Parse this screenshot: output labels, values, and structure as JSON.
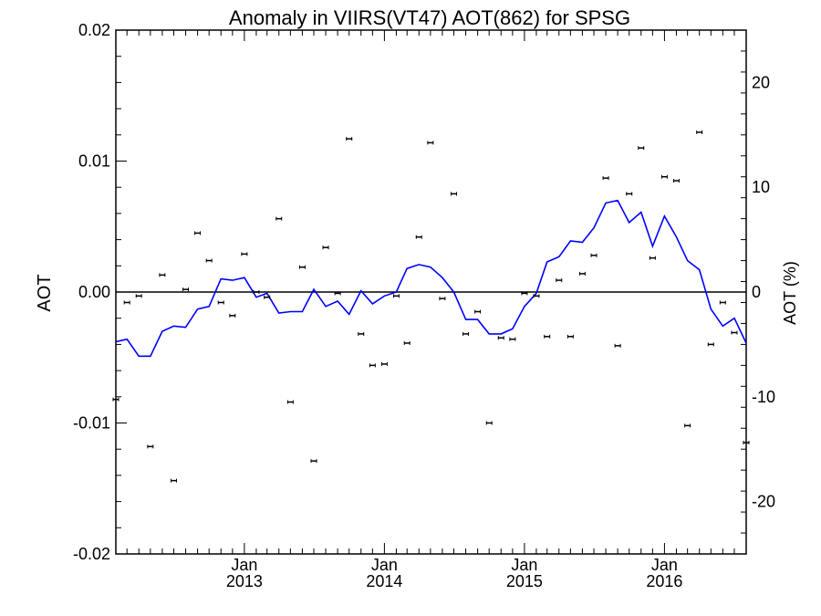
{
  "chart_data": {
    "type": "scatter",
    "title": "Anomaly in VIIRS(VT47) AOT(862) for SPSG",
    "ylabel_left": "AOT",
    "ylabel_right": "AOT (%)",
    "xlabel": "",
    "xlim": [
      "2012-02-01",
      "2016-08-01"
    ],
    "ylim_left": [
      -0.02,
      0.02
    ],
    "ylim_right": [
      -25,
      25
    ],
    "grid": false,
    "x_ticks": [
      {
        "date": "2013-01-01",
        "month": "Jan",
        "year": "2013"
      },
      {
        "date": "2014-01-01",
        "month": "Jan",
        "year": "2014"
      },
      {
        "date": "2015-01-01",
        "month": "Jan",
        "year": "2015"
      },
      {
        "date": "2016-01-01",
        "month": "Jan",
        "year": "2016"
      }
    ],
    "y_ticks_left": [
      "0.02",
      "0.01",
      "0.00",
      "-0.01",
      "-0.02"
    ],
    "y_ticks_left_values": [
      0.02,
      0.01,
      0.0,
      -0.01,
      -0.02
    ],
    "y_ticks_right": [
      "20",
      "10",
      "0",
      "-10",
      "-20"
    ],
    "y_ticks_right_values": [
      20,
      10,
      0,
      -10,
      -20
    ],
    "reference_line_y": 0,
    "colors": {
      "points": "#000000",
      "running_mean": "#0000ff",
      "axis": "#000000"
    },
    "series": [
      {
        "kind": "points_with_errorbars",
        "x": [
          "2012-02-01",
          "2012-03-01",
          "2012-04-01",
          "2012-05-01",
          "2012-06-01",
          "2012-07-01",
          "2012-08-01",
          "2012-09-01",
          "2012-10-01",
          "2012-11-01",
          "2012-12-01",
          "2013-01-01",
          "2013-02-01",
          "2013-03-01",
          "2013-04-01",
          "2013-05-01",
          "2013-06-01",
          "2013-07-01",
          "2013-08-01",
          "2013-09-01",
          "2013-10-01",
          "2013-11-01",
          "2013-12-01",
          "2014-01-01",
          "2014-02-01",
          "2014-03-01",
          "2014-04-01",
          "2014-05-01",
          "2014-06-01",
          "2014-07-01",
          "2014-08-01",
          "2014-09-01",
          "2014-10-01",
          "2014-11-01",
          "2014-12-01",
          "2015-01-01",
          "2015-02-01",
          "2015-03-01",
          "2015-04-01",
          "2015-05-01",
          "2015-06-01",
          "2015-07-01",
          "2015-08-01",
          "2015-09-01",
          "2015-10-01",
          "2015-11-01",
          "2015-12-01",
          "2016-01-01",
          "2016-02-01",
          "2016-03-01",
          "2016-04-01",
          "2016-05-01",
          "2016-06-01",
          "2016-07-01",
          "2016-08-01"
        ],
        "y": [
          -0.0082,
          -0.0008,
          -0.0003,
          -0.0118,
          0.0013,
          -0.0144,
          0.0002,
          0.0045,
          0.0024,
          -0.0008,
          -0.0018,
          0.0029,
          0.0,
          -0.0004,
          0.0056,
          -0.0084,
          0.0019,
          -0.0129,
          0.0034,
          -0.0001,
          0.0117,
          -0.0032,
          -0.0056,
          -0.0055,
          -0.0003,
          -0.0039,
          0.0042,
          0.0114,
          -0.0005,
          0.0075,
          -0.0032,
          -0.0015,
          -0.01,
          -0.0035,
          -0.0036,
          -0.0001,
          -0.0003,
          -0.0034,
          0.0009,
          -0.0034,
          0.0014,
          0.0028,
          0.0087,
          -0.0041,
          0.0075,
          0.011,
          0.0026,
          0.0088,
          0.0085,
          -0.0102,
          0.0122,
          -0.004,
          -0.0008,
          -0.0031,
          -0.0115
        ]
      },
      {
        "kind": "running_mean_line",
        "x": [
          "2012-02-01",
          "2012-03-01",
          "2012-04-01",
          "2012-05-01",
          "2012-06-01",
          "2012-07-01",
          "2012-08-01",
          "2012-09-01",
          "2012-10-01",
          "2012-11-01",
          "2012-12-01",
          "2013-01-01",
          "2013-02-01",
          "2013-03-01",
          "2013-04-01",
          "2013-05-01",
          "2013-06-01",
          "2013-07-01",
          "2013-08-01",
          "2013-09-01",
          "2013-10-01",
          "2013-11-01",
          "2013-12-01",
          "2014-01-01",
          "2014-02-01",
          "2014-03-01",
          "2014-04-01",
          "2014-05-01",
          "2014-06-01",
          "2014-07-01",
          "2014-08-01",
          "2014-09-01",
          "2014-10-01",
          "2014-11-01",
          "2014-12-01",
          "2015-01-01",
          "2015-02-01",
          "2015-03-01",
          "2015-04-01",
          "2015-05-01",
          "2015-06-01",
          "2015-07-01",
          "2015-08-01",
          "2015-09-01",
          "2015-10-01",
          "2015-11-01",
          "2015-12-01",
          "2016-01-01",
          "2016-02-01",
          "2016-03-01",
          "2016-04-01",
          "2016-05-01",
          "2016-06-01",
          "2016-07-01",
          "2016-08-01"
        ],
        "y": [
          -0.0038,
          -0.0036,
          -0.0049,
          -0.0049,
          -0.003,
          -0.0026,
          -0.0027,
          -0.0013,
          -0.0011,
          0.001,
          0.0009,
          0.0011,
          -0.0004,
          -0.0001,
          -0.0016,
          -0.0015,
          -0.0015,
          0.0002,
          -0.0011,
          -0.0007,
          -0.0017,
          0.0001,
          -0.0009,
          -0.0003,
          0.0,
          0.0018,
          0.0021,
          0.0019,
          0.0011,
          0.0,
          -0.0021,
          -0.0021,
          -0.0032,
          -0.0032,
          -0.0028,
          -0.0011,
          -0.0001,
          0.0023,
          0.0027,
          0.0039,
          0.0038,
          0.0049,
          0.0068,
          0.007,
          0.0053,
          0.0061,
          0.0035,
          0.0058,
          0.0042,
          0.0024,
          0.0017,
          -0.0013,
          -0.0026,
          -0.002,
          -0.0039
        ]
      }
    ]
  }
}
